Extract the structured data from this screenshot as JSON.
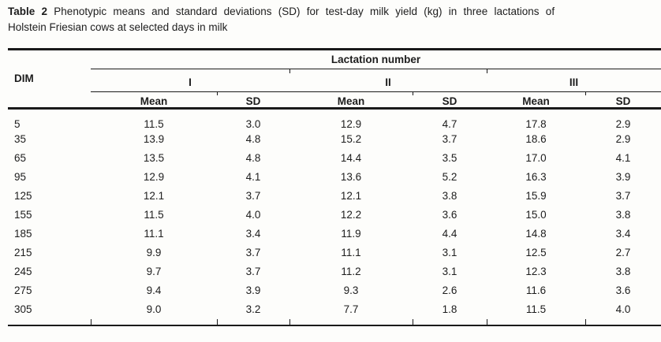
{
  "caption": {
    "label": "Table 2",
    "line1_rest": "Phenotypic means and standard deviations (SD) for test-day milk yield (kg) in three lactations of",
    "line2": "Holstein Friesian cows at selected days in milk"
  },
  "table": {
    "dim_header": "DIM",
    "group_header": "Lactation number",
    "lactation_groups": [
      "I",
      "II",
      "III"
    ],
    "stat_headers": [
      "Mean",
      "SD"
    ],
    "rows": [
      {
        "dim": "5",
        "values": [
          "11.5",
          "3.0",
          "12.9",
          "4.7",
          "17.8",
          "2.9"
        ]
      },
      {
        "dim": "35",
        "values": [
          "13.9",
          "4.8",
          "15.2",
          "3.7",
          "18.6",
          "2.9"
        ]
      },
      {
        "dim": "65",
        "values": [
          "13.5",
          "4.8",
          "14.4",
          "3.5",
          "17.0",
          "4.1"
        ]
      },
      {
        "dim": "95",
        "values": [
          "12.9",
          "4.1",
          "13.6",
          "5.2",
          "16.3",
          "3.9"
        ]
      },
      {
        "dim": "125",
        "values": [
          "12.1",
          "3.7",
          "12.1",
          "3.8",
          "15.9",
          "3.7"
        ]
      },
      {
        "dim": "155",
        "values": [
          "11.5",
          "4.0",
          "12.2",
          "3.6",
          "15.0",
          "3.8"
        ]
      },
      {
        "dim": "185",
        "values": [
          "11.1",
          "3.4",
          "11.9",
          "4.4",
          "14.8",
          "3.4"
        ]
      },
      {
        "dim": "215",
        "values": [
          "9.9",
          "3.7",
          "11.1",
          "3.1",
          "12.5",
          "2.7"
        ]
      },
      {
        "dim": "245",
        "values": [
          "9.7",
          "3.7",
          "11.2",
          "3.1",
          "12.3",
          "3.8"
        ]
      },
      {
        "dim": "275",
        "values": [
          "9.4",
          "3.9",
          "9.3",
          "2.6",
          "11.6",
          "3.6"
        ]
      },
      {
        "dim": "305",
        "values": [
          "9.0",
          "3.2",
          "7.7",
          "1.8",
          "11.5",
          "4.0"
        ]
      }
    ]
  },
  "colors": {
    "rule": "#1a1a1a",
    "text": "#1d1d1d",
    "background": "#fdfdfb"
  }
}
